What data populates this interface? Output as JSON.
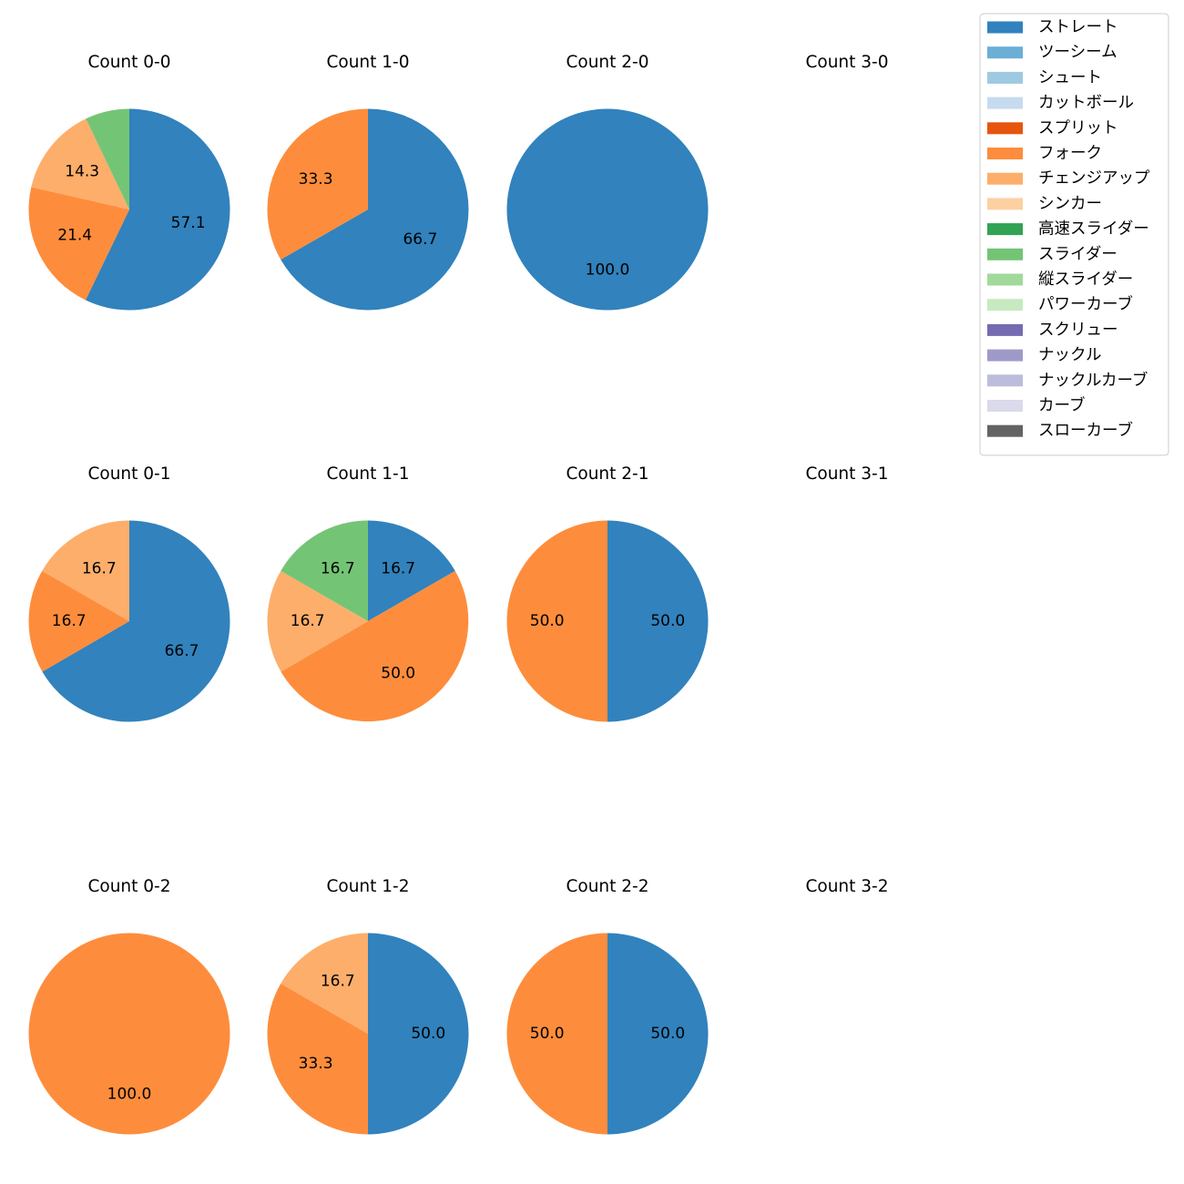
{
  "chart_data": {
    "type": "pie",
    "start_angle": "90deg, clockwise",
    "legend_position": "top-right",
    "categories": [
      {
        "name": "ストレート",
        "color": "#3182bd"
      },
      {
        "name": "ツーシーム",
        "color": "#6baed6"
      },
      {
        "name": "シュート",
        "color": "#9ecae1"
      },
      {
        "name": "カットボール",
        "color": "#c6dbef"
      },
      {
        "name": "スプリット",
        "color": "#e6550d"
      },
      {
        "name": "フォーク",
        "color": "#fd8d3c"
      },
      {
        "name": "チェンジアップ",
        "color": "#fdae6b"
      },
      {
        "name": "シンカー",
        "color": "#fdd0a2"
      },
      {
        "name": "高速スライダー",
        "color": "#31a354"
      },
      {
        "name": "スライダー",
        "color": "#74c476"
      },
      {
        "name": "縦スライダー",
        "color": "#a1d99b"
      },
      {
        "name": "パワーカーブ",
        "color": "#c7e9c0"
      },
      {
        "name": "スクリュー",
        "color": "#756bb1"
      },
      {
        "name": "ナックル",
        "color": "#9e9ac8"
      },
      {
        "name": "ナックルカーブ",
        "color": "#bcbddc"
      },
      {
        "name": "カーブ",
        "color": "#dadaeb"
      },
      {
        "name": "スローカーブ",
        "color": "#636363"
      }
    ],
    "panels": [
      {
        "title": "Count 0-0",
        "slices": [
          {
            "category": "ストレート",
            "value": 57.1,
            "label": "57.1"
          },
          {
            "category": "フォーク",
            "value": 21.4,
            "label": "21.4"
          },
          {
            "category": "チェンジアップ",
            "value": 14.3,
            "label": "14.3"
          },
          {
            "category": "スライダー",
            "value": 7.1,
            "label": ""
          }
        ]
      },
      {
        "title": "Count 1-0",
        "slices": [
          {
            "category": "ストレート",
            "value": 66.7,
            "label": "66.7"
          },
          {
            "category": "フォーク",
            "value": 33.3,
            "label": "33.3"
          }
        ]
      },
      {
        "title": "Count 2-0",
        "slices": [
          {
            "category": "ストレート",
            "value": 100.0,
            "label": "100.0"
          }
        ]
      },
      {
        "title": "Count 3-0",
        "slices": []
      },
      {
        "title": "Count 0-1",
        "slices": [
          {
            "category": "ストレート",
            "value": 66.7,
            "label": "66.7"
          },
          {
            "category": "フォーク",
            "value": 16.7,
            "label": "16.7"
          },
          {
            "category": "チェンジアップ",
            "value": 16.7,
            "label": "16.7"
          }
        ]
      },
      {
        "title": "Count 1-1",
        "slices": [
          {
            "category": "ストレート",
            "value": 16.7,
            "label": "16.7"
          },
          {
            "category": "フォーク",
            "value": 50.0,
            "label": "50.0"
          },
          {
            "category": "チェンジアップ",
            "value": 16.7,
            "label": "16.7"
          },
          {
            "category": "スライダー",
            "value": 16.7,
            "label": "16.7"
          }
        ]
      },
      {
        "title": "Count 2-1",
        "slices": [
          {
            "category": "ストレート",
            "value": 50.0,
            "label": "50.0"
          },
          {
            "category": "フォーク",
            "value": 50.0,
            "label": "50.0"
          }
        ]
      },
      {
        "title": "Count 3-1",
        "slices": []
      },
      {
        "title": "Count 0-2",
        "slices": [
          {
            "category": "フォーク",
            "value": 100.0,
            "label": "100.0"
          }
        ]
      },
      {
        "title": "Count 1-2",
        "slices": [
          {
            "category": "ストレート",
            "value": 50.0,
            "label": "50.0"
          },
          {
            "category": "フォーク",
            "value": 33.3,
            "label": "33.3"
          },
          {
            "category": "チェンジアップ",
            "value": 16.7,
            "label": "16.7"
          }
        ]
      },
      {
        "title": "Count 2-2",
        "slices": [
          {
            "category": "ストレート",
            "value": 50.0,
            "label": "50.0"
          },
          {
            "category": "フォーク",
            "value": 50.0,
            "label": "50.0"
          }
        ]
      },
      {
        "title": "Count 3-2",
        "slices": []
      }
    ]
  }
}
